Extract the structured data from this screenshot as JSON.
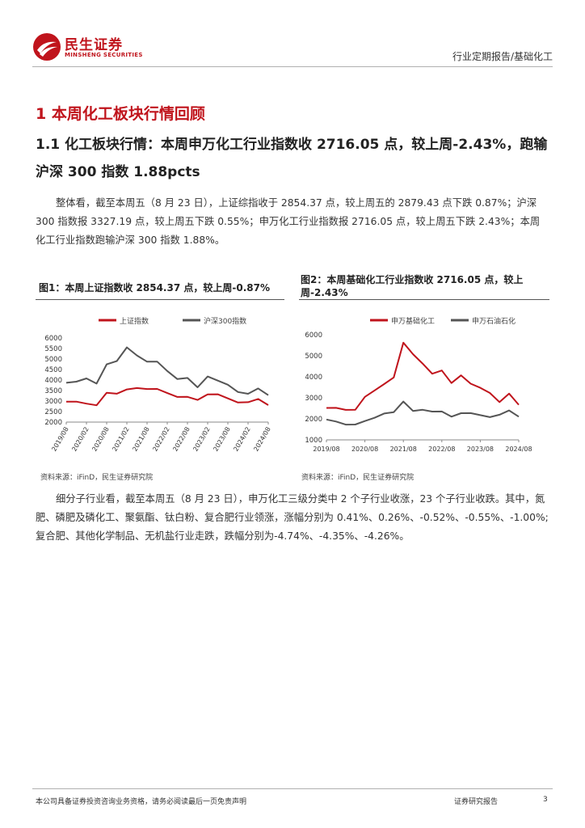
{
  "header": {
    "logo_cn": "民生证券",
    "logo_en": "MINSHENG SECURITIES",
    "category": "行业定期报告/基础化工"
  },
  "section_title": "1 本周化工板块行情回顾",
  "subsection_title": "1.1 化工板块行情：本周申万化工行业指数收 2716.05 点，较上周-2.43%，跑输沪深 300 指数 1.88pcts",
  "paragraph1": "整体看，截至本周五（8 月 23 日），上证综指收于 2854.37 点，较上周五的 2879.43 点下跌 0.87%；沪深 300 指数报 3327.19 点，较上周五下跌 0.55%；申万化工行业指数报 2716.05 点，较上周五下跌 2.43%；本周化工行业指数跑输沪深 300 指数 1.88%。",
  "paragraph2": "细分子行业看，截至本周五（8 月 23 日），申万化工三级分类中 2 个子行业收涨，23 个子行业收跌。其中，氮肥、磷肥及磷化工、聚氨酯、钛白粉、复合肥行业领涨，涨幅分别为 0.41%、0.26%、-0.52%、-0.55%、-1.00%;复合肥、其他化学制品、无机盐行业走跌，跌幅分别为-4.74%、-4.35%、-4.26%。",
  "figure1": {
    "title": "图1：本周上证指数收 2854.37 点，较上周-0.87%",
    "source": "资料来源：iFinD，民生证券研究院"
  },
  "figure2": {
    "title": "图2：本周基础化工行业指数收 2716.05 点，较上周-2.43%",
    "source": "资料来源：iFinD，民生证券研究院"
  },
  "footer": {
    "disclaimer": "本公司具备证券投资咨询业务资格，请务必阅读最后一页免责声明",
    "report_type": "证券研究报告",
    "page": "3"
  },
  "colors": {
    "brand_red": "#c0141c",
    "series_red": "#c0141c",
    "series_gray": "#555555"
  },
  "chart_data": [
    {
      "type": "line",
      "x": [
        "2019/08",
        "2019/11",
        "2020/02",
        "2020/05",
        "2020/08",
        "2020/11",
        "2021/02",
        "2021/05",
        "2021/08",
        "2021/11",
        "2022/02",
        "2022/05",
        "2022/08",
        "2022/11",
        "2023/02",
        "2023/05",
        "2023/08",
        "2023/11",
        "2024/02",
        "2024/05",
        "2024/08"
      ],
      "x_tick_labels": [
        "2019/08",
        "2020/02",
        "2020/08",
        "2021/02",
        "2021/08",
        "2022/02",
        "2022/08",
        "2023/02",
        "2023/08",
        "2024/02",
        "2024/08"
      ],
      "series": [
        {
          "name": "上证指数",
          "color": "#c0141c",
          "values": [
            2900,
            2950,
            2900,
            2870,
            3350,
            3350,
            3600,
            3550,
            3550,
            3600,
            3450,
            3150,
            3200,
            3100,
            3250,
            3300,
            3150,
            3000,
            2900,
            3100,
            2854
          ]
        },
        {
          "name": "沪深300指数",
          "color": "#555555",
          "values": [
            3800,
            3900,
            4100,
            3900,
            4700,
            4900,
            5600,
            5100,
            4850,
            4900,
            4500,
            4000,
            4100,
            3700,
            4100,
            3950,
            3800,
            3500,
            3300,
            3600,
            3327
          ]
        }
      ],
      "ylim": [
        2000,
        6000
      ],
      "yticks": [
        2000,
        2500,
        3000,
        3500,
        4000,
        4500,
        5000,
        5500,
        6000
      ],
      "legend": "top"
    },
    {
      "type": "line",
      "x": [
        "2019/08",
        "2019/11",
        "2020/02",
        "2020/05",
        "2020/08",
        "2020/11",
        "2021/02",
        "2021/05",
        "2021/08",
        "2021/11",
        "2022/02",
        "2022/05",
        "2022/08",
        "2022/11",
        "2023/02",
        "2023/05",
        "2023/08",
        "2023/11",
        "2024/02",
        "2024/05",
        "2024/08"
      ],
      "x_tick_labels": [
        "2019/08",
        "2020/08",
        "2021/08",
        "2022/08",
        "2023/08",
        "2024/08"
      ],
      "series": [
        {
          "name": "申万基础化工",
          "color": "#c0141c",
          "values": [
            2450,
            2500,
            2450,
            2500,
            3000,
            3350,
            3700,
            3900,
            5600,
            5100,
            4700,
            4100,
            4300,
            3750,
            4000,
            3650,
            3500,
            3300,
            2750,
            3200,
            2716
          ]
        },
        {
          "name": "申万石油石化",
          "color": "#555555",
          "values": [
            1900,
            1850,
            1750,
            1800,
            1850,
            2050,
            2300,
            2250,
            2800,
            2400,
            2500,
            2300,
            2350,
            2150,
            2200,
            2250,
            2200,
            2150,
            2150,
            2400,
            2150
          ]
        }
      ],
      "ylim": [
        1000,
        6000
      ],
      "yticks": [
        1000,
        2000,
        3000,
        4000,
        5000,
        6000
      ],
      "legend": "top"
    }
  ]
}
